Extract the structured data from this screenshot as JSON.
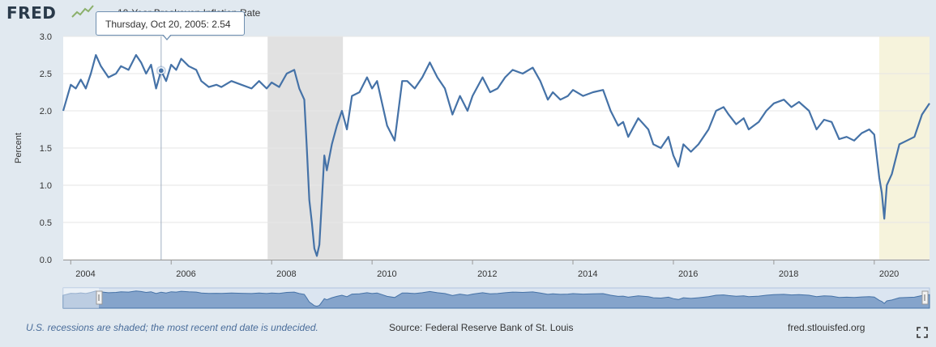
{
  "header": {
    "logo_text": "FRED",
    "series_title": "10-Year Breakeven Inflation Rate"
  },
  "tooltip": {
    "date_label": "Thursday, Oct 20, 2005:",
    "value_label": "2.54"
  },
  "footer": {
    "note": "U.S. recessions are shaded; the most recent end date is undecided.",
    "source": "Source: Federal Reserve Bank of St. Louis",
    "site": "fred.stlouisfed.org"
  },
  "colors": {
    "line": "#4572a7",
    "recession": "#e1e1e1",
    "recession_current": "#f6f3dc",
    "background": "#e1e9f0",
    "plot": "#ffffff"
  },
  "chart_data": {
    "type": "line",
    "title": "10-Year Breakeven Inflation Rate",
    "ylabel": "Percent",
    "xlabel": "",
    "ylim": [
      0.0,
      3.0
    ],
    "xlim": [
      2003.85,
      2021.1
    ],
    "y_ticks": [
      "0.0",
      "0.5",
      "1.0",
      "1.5",
      "2.0",
      "2.5",
      "3.0"
    ],
    "x_ticks": [
      "2004",
      "2006",
      "2008",
      "2010",
      "2012",
      "2014",
      "2016",
      "2018",
      "2020"
    ],
    "grid": true,
    "recessions": [
      [
        2007.92,
        2009.42
      ],
      [
        2020.1,
        2021.1
      ]
    ],
    "highlight": {
      "x": 2005.8,
      "y": 2.54,
      "label": "Thursday, Oct 20, 2005: 2.54"
    },
    "series": [
      {
        "x": [
          2003.85,
          2004.0,
          2004.1,
          2004.2,
          2004.3,
          2004.4,
          2004.5,
          2004.6,
          2004.75,
          2004.9,
          2005.0,
          2005.15,
          2005.3,
          2005.4,
          2005.5,
          2005.6,
          2005.7,
          2005.8,
          2005.9,
          2006.0,
          2006.1,
          2006.2,
          2006.35,
          2006.5,
          2006.6,
          2006.75,
          2006.9,
          2007.0,
          2007.2,
          2007.4,
          2007.6,
          2007.75,
          2007.9,
          2008.0,
          2008.15,
          2008.3,
          2008.45,
          2008.55,
          2008.65,
          2008.7,
          2008.75,
          2008.8,
          2008.85,
          2008.9,
          2008.95,
          2009.0,
          2009.05,
          2009.1,
          2009.2,
          2009.3,
          2009.4,
          2009.5,
          2009.6,
          2009.75,
          2009.9,
          2010.0,
          2010.1,
          2010.3,
          2010.45,
          2010.6,
          2010.7,
          2010.85,
          2011.0,
          2011.15,
          2011.3,
          2011.45,
          2011.6,
          2011.75,
          2011.9,
          2012.0,
          2012.2,
          2012.35,
          2012.5,
          2012.65,
          2012.8,
          2013.0,
          2013.2,
          2013.35,
          2013.5,
          2013.6,
          2013.75,
          2013.9,
          2014.0,
          2014.2,
          2014.4,
          2014.6,
          2014.75,
          2014.9,
          2015.0,
          2015.1,
          2015.3,
          2015.5,
          2015.6,
          2015.75,
          2015.9,
          2016.0,
          2016.1,
          2016.2,
          2016.35,
          2016.5,
          2016.7,
          2016.85,
          2017.0,
          2017.1,
          2017.25,
          2017.4,
          2017.5,
          2017.7,
          2017.85,
          2018.0,
          2018.2,
          2018.35,
          2018.5,
          2018.7,
          2018.85,
          2019.0,
          2019.15,
          2019.3,
          2019.45,
          2019.6,
          2019.75,
          2019.9,
          2020.0,
          2020.1,
          2020.15,
          2020.2,
          2020.25,
          2020.35,
          2020.5,
          2020.65,
          2020.8,
          2020.95,
          2021.1
        ],
        "values": [
          2.0,
          2.35,
          2.3,
          2.42,
          2.3,
          2.5,
          2.75,
          2.6,
          2.45,
          2.5,
          2.6,
          2.55,
          2.75,
          2.65,
          2.5,
          2.62,
          2.3,
          2.54,
          2.4,
          2.62,
          2.55,
          2.7,
          2.6,
          2.55,
          2.4,
          2.32,
          2.35,
          2.32,
          2.4,
          2.35,
          2.3,
          2.4,
          2.3,
          2.38,
          2.32,
          2.5,
          2.55,
          2.3,
          2.15,
          1.5,
          0.8,
          0.5,
          0.15,
          0.05,
          0.2,
          0.8,
          1.4,
          1.2,
          1.55,
          1.8,
          2.0,
          1.75,
          2.2,
          2.25,
          2.45,
          2.3,
          2.4,
          1.8,
          1.6,
          2.4,
          2.4,
          2.3,
          2.45,
          2.65,
          2.45,
          2.3,
          1.95,
          2.2,
          2.0,
          2.2,
          2.45,
          2.25,
          2.3,
          2.45,
          2.55,
          2.5,
          2.58,
          2.4,
          2.15,
          2.25,
          2.15,
          2.2,
          2.28,
          2.2,
          2.25,
          2.28,
          2.0,
          1.8,
          1.85,
          1.65,
          1.9,
          1.75,
          1.55,
          1.5,
          1.65,
          1.4,
          1.25,
          1.55,
          1.45,
          1.55,
          1.75,
          2.0,
          2.05,
          1.95,
          1.82,
          1.9,
          1.75,
          1.85,
          2.0,
          2.1,
          2.15,
          2.05,
          2.12,
          2.0,
          1.75,
          1.88,
          1.85,
          1.62,
          1.65,
          1.6,
          1.7,
          1.75,
          1.68,
          1.1,
          0.9,
          0.55,
          1.0,
          1.15,
          1.55,
          1.6,
          1.65,
          1.95,
          2.1
        ]
      }
    ]
  }
}
